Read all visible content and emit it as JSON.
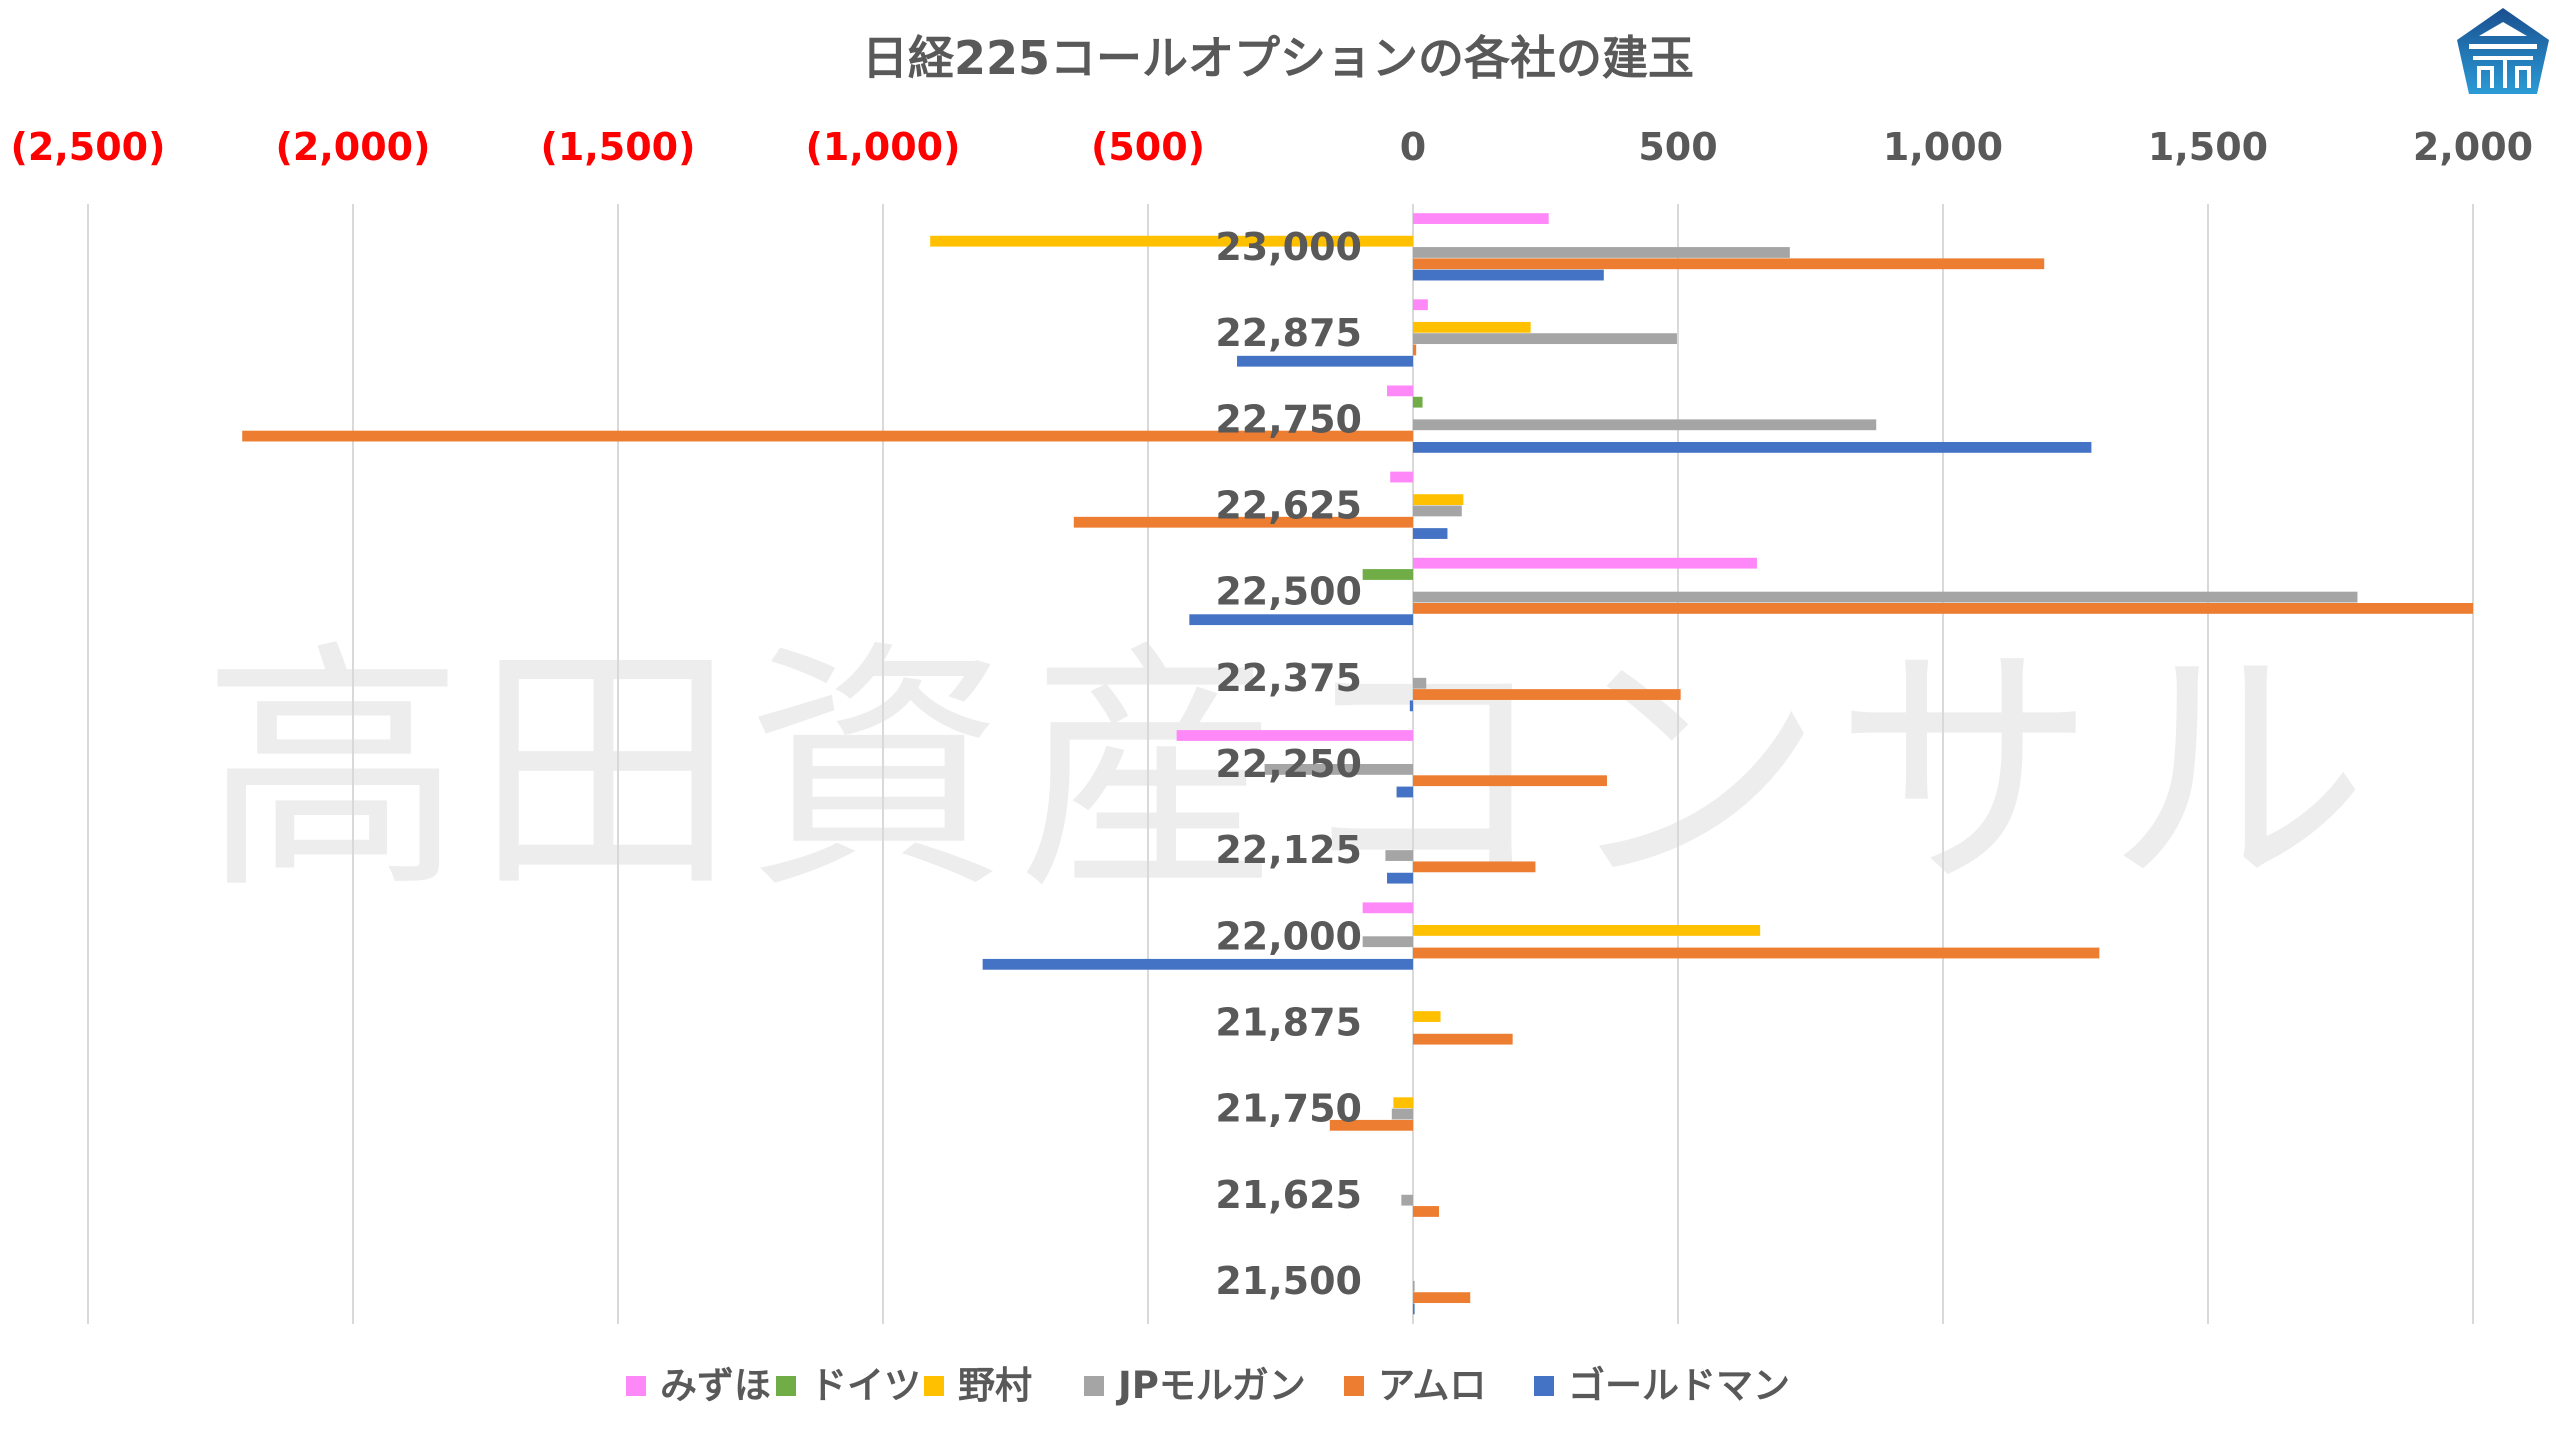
{
  "chart_data": {
    "type": "bar",
    "orientation": "horizontal",
    "title": "日経225コールオプションの各社の建玉",
    "watermark": "高田資産コンサル",
    "xlim": [
      -2500,
      2000
    ],
    "xticks": [
      -2500,
      -2000,
      -1500,
      -1000,
      -500,
      0,
      500,
      1000,
      1500,
      2000
    ],
    "xtick_labels": [
      "(2,500)",
      "(2,000)",
      "(1,500)",
      "(1,000)",
      "(500)",
      "0",
      "500",
      "1,000",
      "1,500",
      "2,000"
    ],
    "negative_tick_color": "#ff0000",
    "grid": true,
    "legend_position": "bottom",
    "categories": [
      "23,000",
      "22,875",
      "22,750",
      "22,625",
      "22,500",
      "22,375",
      "22,250",
      "22,125",
      "22,000",
      "21,875",
      "21,750",
      "21,625",
      "21,500"
    ],
    "series": [
      {
        "name": "みずほ",
        "color": "#ff88f8",
        "values": [
          256,
          28,
          -49,
          -43,
          649,
          0,
          -446,
          0,
          -95,
          0,
          0,
          0,
          0
        ]
      },
      {
        "name": "ドイツ",
        "color": "#70ad47",
        "values": [
          0,
          0,
          18,
          0,
          -95,
          0,
          0,
          0,
          0,
          0,
          0,
          0,
          0
        ]
      },
      {
        "name": "野村",
        "color": "#ffc000",
        "values": [
          -911,
          222,
          0,
          95,
          0,
          0,
          0,
          0,
          655,
          52,
          -37,
          0,
          0
        ]
      },
      {
        "name": "JPモルガン",
        "color": "#a5a5a5",
        "values": [
          711,
          498,
          874,
          92,
          1782,
          25,
          -280,
          -52,
          -95,
          0,
          -40,
          -22,
          3
        ]
      },
      {
        "name": "アムロ",
        "color": "#ed7d31",
        "values": [
          1191,
          6,
          -2209,
          -640,
          2000,
          505,
          366,
          231,
          1295,
          188,
          -157,
          49,
          108
        ]
      },
      {
        "name": "ゴールドマン",
        "color": "#4472c4",
        "values": [
          360,
          -332,
          1280,
          65,
          -422,
          -6,
          -31,
          -49,
          -812,
          0,
          0,
          0,
          3
        ]
      }
    ]
  },
  "logo": {
    "name": "pentagon-building-logo",
    "colors": [
      "#1a4f8f",
      "#2a9bd6"
    ]
  }
}
